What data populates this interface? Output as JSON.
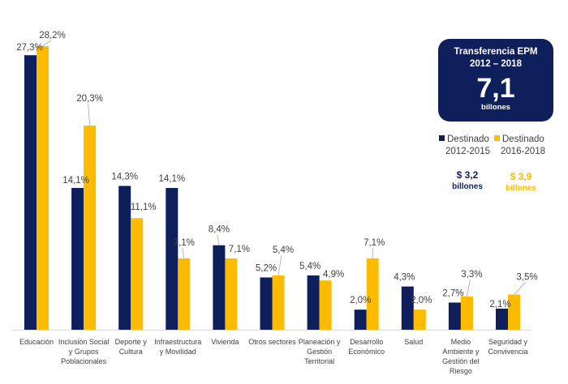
{
  "chart_data": {
    "type": "bar",
    "title": "",
    "xlabel": "",
    "ylabel": "",
    "ylim": [
      0,
      28.2
    ],
    "grid": false,
    "legend_position": "right",
    "categories": [
      [
        "Educación"
      ],
      [
        "Inclusión Social",
        "y Grupos",
        "Poblacionales"
      ],
      [
        "Deporte y",
        "Cultura"
      ],
      [
        "Infraestructura",
        "y Movilidad"
      ],
      [
        "Vivienda"
      ],
      [
        "Otros sectores"
      ],
      [
        "Planeación y",
        "Gestión",
        "Territorial"
      ],
      [
        "Desarrollo",
        "Económico"
      ],
      [
        "Salud"
      ],
      [
        "Medio",
        "Ambiente y",
        "Gestión del",
        "Riesgo"
      ],
      [
        "Seguridad y",
        "Convivencia"
      ]
    ],
    "series": [
      {
        "name": "Destinado 2012-2015",
        "color": "#0e1f5b",
        "values": [
          27.3,
          14.1,
          14.3,
          14.1,
          8.4,
          5.2,
          5.4,
          2.0,
          4.3,
          2.7,
          2.1
        ],
        "labels": [
          "27,3%",
          "14,1%",
          "14,3%",
          "14,1%",
          "8,4%",
          "5,2%",
          "5,4%",
          "2,0%",
          "4,3%",
          "2,7%",
          "2,1%"
        ]
      },
      {
        "name": "Destinado 2016-2018",
        "color": "#fdbb00",
        "values": [
          28.2,
          20.3,
          11.1,
          7.1,
          7.1,
          5.4,
          4.9,
          7.1,
          2.0,
          3.3,
          3.5
        ],
        "labels": [
          "28,2%",
          "20,3%",
          "11,1%",
          "7,1%",
          "7,1%",
          "5,4%",
          "4,9%",
          "7,1%",
          "2,0%",
          "3,3%",
          "3,5%"
        ]
      }
    ]
  },
  "summary": {
    "title_line1": "Transferencia EPM",
    "title_line2": "2012 – 2018",
    "total": "7,1",
    "unit": "billones"
  },
  "legend": [
    {
      "line1": "Destinado",
      "line2": "2012-2015",
      "amount": "$ 3,2",
      "unit": "billones",
      "color": "#0e1f5b",
      "amount_color": "#0e1f5b"
    },
    {
      "line1": "Destinado",
      "line2": "2016-2018",
      "amount": "$ 3,9",
      "unit": "billones",
      "color": "#fdbb00",
      "amount_color": "#fdbb00"
    }
  ]
}
